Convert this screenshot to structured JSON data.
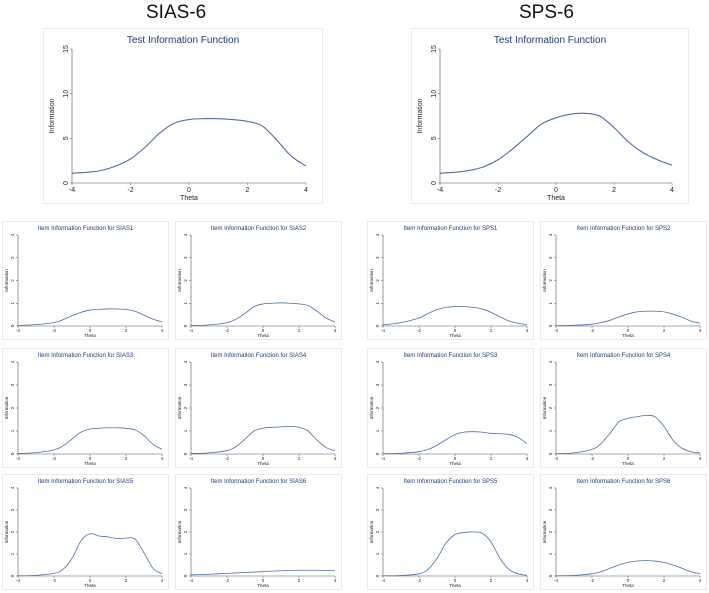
{
  "headings": {
    "left": "SIAS-6",
    "right": "SPS-6"
  },
  "colors": {
    "line": "#4a6fa5",
    "title": "#1e3a78",
    "axis": "#555555",
    "border": "#e8eaf0"
  },
  "chart_data": [
    {
      "id": "sias-test",
      "type": "line",
      "title": "Test Information Function",
      "xlabel": "Theta",
      "ylabel": "Information",
      "xlim": [
        -4,
        4
      ],
      "ylim": [
        0,
        15
      ],
      "xticks": [
        -4,
        -2,
        0,
        2,
        4
      ],
      "yticks": [
        0,
        5,
        10,
        15
      ],
      "x": [
        -4,
        -3.5,
        -3,
        -2.5,
        -2,
        -1.5,
        -1,
        -0.5,
        0,
        0.5,
        1,
        1.5,
        2,
        2.5,
        3,
        3.5,
        4
      ],
      "y": [
        1.1,
        1.2,
        1.4,
        1.9,
        2.7,
        4.0,
        5.6,
        6.7,
        7.1,
        7.2,
        7.2,
        7.1,
        6.9,
        6.4,
        4.8,
        3.0,
        1.9
      ]
    },
    {
      "id": "sps-test",
      "type": "line",
      "title": "Test Information Function",
      "xlabel": "Theta",
      "ylabel": "Information",
      "xlim": [
        -4,
        4
      ],
      "ylim": [
        0,
        15
      ],
      "xticks": [
        -4,
        -2,
        0,
        2,
        4
      ],
      "yticks": [
        0,
        5,
        10,
        15
      ],
      "x": [
        -4,
        -3.5,
        -3,
        -2.5,
        -2,
        -1.5,
        -1,
        -0.5,
        0,
        0.5,
        1,
        1.5,
        2,
        2.5,
        3,
        3.5,
        4
      ],
      "y": [
        1.1,
        1.2,
        1.4,
        1.8,
        2.6,
        3.8,
        5.2,
        6.6,
        7.3,
        7.7,
        7.8,
        7.5,
        6.2,
        4.6,
        3.4,
        2.6,
        2.0
      ]
    },
    {
      "id": "sias1",
      "type": "line",
      "title": "Item Information Function for SIAS1",
      "xlabel": "Theta",
      "ylabel": "Information",
      "xlim": [
        -4,
        4
      ],
      "ylim": [
        0,
        4
      ],
      "xticks": [
        -4,
        -2,
        0,
        2,
        4
      ],
      "yticks": [
        0,
        1,
        2,
        3,
        4
      ],
      "x": [
        -4,
        -3,
        -2,
        -1.5,
        -1,
        -0.5,
        0,
        0.5,
        1,
        1.5,
        2,
        2.5,
        3,
        3.5,
        4
      ],
      "y": [
        0.02,
        0.06,
        0.15,
        0.28,
        0.45,
        0.6,
        0.7,
        0.73,
        0.75,
        0.75,
        0.73,
        0.65,
        0.48,
        0.3,
        0.18
      ]
    },
    {
      "id": "sias2",
      "type": "line",
      "title": "Item Information Function for SIAS2",
      "xlabel": "Theta",
      "ylabel": "Information",
      "xlim": [
        -4,
        4
      ],
      "ylim": [
        0,
        4
      ],
      "xticks": [
        -4,
        -2,
        0,
        2,
        4
      ],
      "yticks": [
        0,
        1,
        2,
        3,
        4
      ],
      "x": [
        -4,
        -3,
        -2,
        -1.5,
        -1,
        -0.5,
        0,
        0.5,
        1,
        1.5,
        2,
        2.5,
        3,
        3.5,
        4
      ],
      "y": [
        0.02,
        0.05,
        0.15,
        0.3,
        0.55,
        0.85,
        0.97,
        1.0,
        1.02,
        1.0,
        0.97,
        0.9,
        0.65,
        0.35,
        0.18
      ]
    },
    {
      "id": "sps1",
      "type": "line",
      "title": "Item Information Function for SPS1",
      "xlabel": "Theta",
      "ylabel": "Information",
      "xlim": [
        -4,
        4
      ],
      "ylim": [
        0,
        4
      ],
      "xticks": [
        -4,
        -2,
        0,
        2,
        4
      ],
      "yticks": [
        0,
        1,
        2,
        3,
        4
      ],
      "x": [
        -4,
        -3,
        -2,
        -1.5,
        -1,
        -0.5,
        0,
        0.5,
        1,
        1.5,
        2,
        2.5,
        3,
        3.5,
        4
      ],
      "y": [
        0.05,
        0.15,
        0.35,
        0.55,
        0.72,
        0.82,
        0.85,
        0.85,
        0.82,
        0.75,
        0.6,
        0.4,
        0.22,
        0.12,
        0.06
      ]
    },
    {
      "id": "sps2",
      "type": "line",
      "title": "Item Information Function for SPS2",
      "xlabel": "Theta",
      "ylabel": "Information",
      "xlim": [
        -4,
        4
      ],
      "ylim": [
        0,
        4
      ],
      "xticks": [
        -4,
        -2,
        0,
        2,
        4
      ],
      "yticks": [
        0,
        1,
        2,
        3,
        4
      ],
      "x": [
        -4,
        -3,
        -2,
        -1.5,
        -1,
        -0.5,
        0,
        0.5,
        1,
        1.5,
        2,
        2.5,
        3,
        3.5,
        4
      ],
      "y": [
        0.01,
        0.03,
        0.08,
        0.15,
        0.25,
        0.4,
        0.53,
        0.62,
        0.65,
        0.65,
        0.62,
        0.52,
        0.38,
        0.22,
        0.12
      ]
    },
    {
      "id": "sias3",
      "type": "line",
      "title": "Item Information Function for SIAS3",
      "xlabel": "Theta",
      "ylabel": "Information",
      "xlim": [
        -4,
        4
      ],
      "ylim": [
        0,
        4
      ],
      "xticks": [
        -4,
        -2,
        0,
        2,
        4
      ],
      "yticks": [
        0,
        1,
        2,
        3,
        4
      ],
      "x": [
        -4,
        -3,
        -2,
        -1.5,
        -1,
        -0.5,
        0,
        0.5,
        1,
        1.5,
        2,
        2.5,
        3,
        3.5,
        4
      ],
      "y": [
        0.02,
        0.06,
        0.18,
        0.35,
        0.65,
        0.95,
        1.08,
        1.12,
        1.14,
        1.14,
        1.12,
        1.05,
        0.8,
        0.42,
        0.2
      ]
    },
    {
      "id": "sias4",
      "type": "line",
      "title": "Item Information Function for SIAS4",
      "xlabel": "Theta",
      "ylabel": "Information",
      "xlim": [
        -4,
        4
      ],
      "ylim": [
        0,
        4
      ],
      "xticks": [
        -4,
        -2,
        0,
        2,
        4
      ],
      "yticks": [
        0,
        1,
        2,
        3,
        4
      ],
      "x": [
        -4,
        -3,
        -2,
        -1.5,
        -1,
        -0.5,
        0,
        0.5,
        1,
        1.5,
        2,
        2.5,
        3,
        3.5,
        4
      ],
      "y": [
        0.02,
        0.05,
        0.15,
        0.32,
        0.65,
        1.0,
        1.12,
        1.16,
        1.18,
        1.2,
        1.16,
        1.0,
        0.6,
        0.28,
        0.15
      ]
    },
    {
      "id": "sps3",
      "type": "line",
      "title": "Item Information Function for SPS3",
      "xlabel": "Theta",
      "ylabel": "Information",
      "xlim": [
        -4,
        4
      ],
      "ylim": [
        0,
        4
      ],
      "xticks": [
        -4,
        -2,
        0,
        2,
        4
      ],
      "yticks": [
        0,
        1,
        2,
        3,
        4
      ],
      "x": [
        -4,
        -3,
        -2,
        -1.5,
        -1,
        -0.5,
        0,
        0.5,
        1,
        1.5,
        2,
        2.5,
        3,
        3.5,
        4
      ],
      "y": [
        0.01,
        0.03,
        0.1,
        0.2,
        0.38,
        0.62,
        0.85,
        0.95,
        0.97,
        0.95,
        0.9,
        0.88,
        0.85,
        0.72,
        0.45
      ]
    },
    {
      "id": "sps4",
      "type": "line",
      "title": "Item Information Function for SPS4",
      "xlabel": "Theta",
      "ylabel": "Information",
      "xlim": [
        -4,
        4
      ],
      "ylim": [
        0,
        4
      ],
      "xticks": [
        -4,
        -2,
        0,
        2,
        4
      ],
      "yticks": [
        0,
        1,
        2,
        3,
        4
      ],
      "x": [
        -4,
        -3,
        -2,
        -1.5,
        -1,
        -0.5,
        0,
        0.5,
        1,
        1.5,
        2,
        2.5,
        3,
        3.5,
        4
      ],
      "y": [
        0.01,
        0.05,
        0.2,
        0.45,
        0.9,
        1.4,
        1.55,
        1.62,
        1.68,
        1.62,
        1.2,
        0.6,
        0.25,
        0.1,
        0.05
      ]
    },
    {
      "id": "sias5",
      "type": "line",
      "title": "Item Information Function for SIAS5",
      "xlabel": "Theta",
      "ylabel": "Information",
      "xlim": [
        -4,
        4
      ],
      "ylim": [
        0,
        4
      ],
      "xticks": [
        -4,
        -2,
        0,
        2,
        4
      ],
      "yticks": [
        0,
        1,
        2,
        3,
        4
      ],
      "x": [
        -4,
        -3,
        -2,
        -1.5,
        -1,
        -0.5,
        0,
        0.5,
        1,
        1.5,
        2,
        2.5,
        3,
        3.5,
        4
      ],
      "y": [
        0.01,
        0.03,
        0.12,
        0.3,
        0.8,
        1.6,
        1.92,
        1.82,
        1.78,
        1.7,
        1.72,
        1.68,
        1.05,
        0.35,
        0.1
      ]
    },
    {
      "id": "sias6",
      "type": "line",
      "title": "Item Information Function for SIAS6",
      "xlabel": "Theta",
      "ylabel": "Information",
      "xlim": [
        -4,
        4
      ],
      "ylim": [
        0,
        4
      ],
      "xticks": [
        -4,
        -2,
        0,
        2,
        4
      ],
      "yticks": [
        0,
        1,
        2,
        3,
        4
      ],
      "x": [
        -4,
        -3,
        -2,
        -1,
        0,
        1,
        2,
        3,
        4
      ],
      "y": [
        0.05,
        0.08,
        0.12,
        0.16,
        0.2,
        0.24,
        0.26,
        0.26,
        0.24
      ]
    },
    {
      "id": "sps5",
      "type": "line",
      "title": "Item Information Function for SPS5",
      "xlabel": "Theta",
      "ylabel": "Information",
      "xlim": [
        -4,
        4
      ],
      "ylim": [
        0,
        4
      ],
      "xticks": [
        -4,
        -2,
        0,
        2,
        4
      ],
      "yticks": [
        0,
        1,
        2,
        3,
        4
      ],
      "x": [
        -4,
        -3,
        -2,
        -1.5,
        -1,
        -0.5,
        0,
        0.5,
        1,
        1.5,
        2,
        2.5,
        3,
        3.5,
        4
      ],
      "y": [
        0.01,
        0.02,
        0.1,
        0.3,
        0.8,
        1.5,
        1.88,
        1.98,
        2.0,
        1.95,
        1.55,
        0.8,
        0.3,
        0.1,
        0.03
      ]
    },
    {
      "id": "sps6",
      "type": "line",
      "title": "Item Information Function for SPS6",
      "xlabel": "Theta",
      "ylabel": "Information",
      "xlim": [
        -4,
        4
      ],
      "ylim": [
        0,
        4
      ],
      "xticks": [
        -4,
        -2,
        0,
        2,
        4
      ],
      "yticks": [
        0,
        1,
        2,
        3,
        4
      ],
      "x": [
        -4,
        -3,
        -2,
        -1.5,
        -1,
        -0.5,
        0,
        0.5,
        1,
        1.5,
        2,
        2.5,
        3,
        3.5,
        4
      ],
      "y": [
        0.01,
        0.03,
        0.1,
        0.2,
        0.35,
        0.5,
        0.62,
        0.68,
        0.7,
        0.68,
        0.62,
        0.5,
        0.35,
        0.2,
        0.1
      ]
    }
  ]
}
